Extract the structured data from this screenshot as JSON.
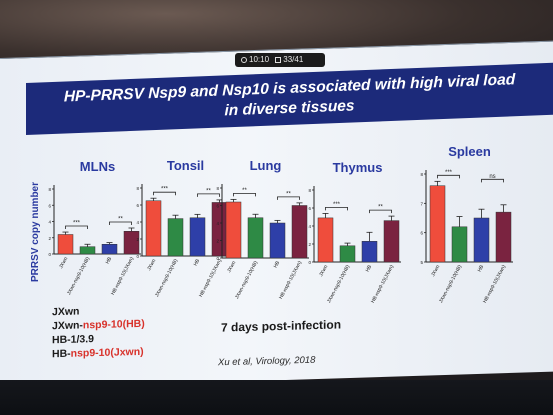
{
  "status_bar": {
    "time": "10:10",
    "page": "33/41"
  },
  "title": {
    "line1": "HP-PRRSV Nsp9 and Nsp10 is associated with high viral load",
    "line2": "in diverse tissues"
  },
  "colors": {
    "bar1": "#ef4d3c",
    "bar2": "#2e8a45",
    "bar3": "#2e3fa8",
    "bar4": "#7a2340",
    "banner": "#1c2a7a",
    "panel_title": "#2a3aa0"
  },
  "chart_data": {
    "type": "bar",
    "ylabel": "PRRSV copy number",
    "categories": [
      "JXwn",
      "JXwn-nsp9-10(HB)",
      "HB",
      "HB-nsp9-10(JXwn)"
    ],
    "panels": [
      {
        "title": "MLNs",
        "yticks": [
          "8",
          "6",
          "4",
          "2",
          "0"
        ],
        "ylim": [
          0,
          8
        ],
        "values": [
          2.4,
          0.9,
          1.2,
          2.8
        ],
        "errors": [
          0.3,
          0.3,
          0.2,
          0.4
        ],
        "sig": [
          {
            "from": 0,
            "to": 1,
            "label": "***"
          },
          {
            "from": 2,
            "to": 3,
            "label": "**"
          }
        ]
      },
      {
        "title": "Tonsil",
        "yticks": [
          "8",
          "6",
          "4",
          "2",
          "0"
        ],
        "ylim": [
          0,
          8
        ],
        "values": [
          6.5,
          4.4,
          4.5,
          6.3
        ],
        "errors": [
          0.3,
          0.4,
          0.4,
          0.3
        ],
        "sig": [
          {
            "from": 0,
            "to": 1,
            "label": "***"
          },
          {
            "from": 2,
            "to": 3,
            "label": "**"
          }
        ]
      },
      {
        "title": "Lung",
        "yticks": [
          "8",
          "6",
          "4",
          "2",
          "0"
        ],
        "ylim": [
          0,
          8
        ],
        "values": [
          6.4,
          4.6,
          4.0,
          6.0
        ],
        "errors": [
          0.3,
          0.4,
          0.3,
          0.3
        ],
        "sig": [
          {
            "from": 0,
            "to": 1,
            "label": "**"
          },
          {
            "from": 2,
            "to": 3,
            "label": "**"
          }
        ]
      },
      {
        "title": "Thymus",
        "yticks": [
          "8",
          "6",
          "4",
          "2",
          "0"
        ],
        "ylim": [
          0,
          8
        ],
        "values": [
          4.9,
          1.8,
          2.3,
          4.6
        ],
        "errors": [
          0.5,
          0.3,
          1.0,
          0.5
        ],
        "sig": [
          {
            "from": 0,
            "to": 1,
            "label": "***"
          },
          {
            "from": 2,
            "to": 3,
            "label": "**"
          }
        ]
      },
      {
        "title": "Spleen",
        "yticks": [
          "8",
          "7",
          "6",
          "5"
        ],
        "ylim": [
          5,
          8
        ],
        "values": [
          7.6,
          6.2,
          6.5,
          6.7
        ],
        "errors": [
          0.15,
          0.35,
          0.3,
          0.25
        ],
        "sig": [
          {
            "from": 0,
            "to": 1,
            "label": "***"
          },
          {
            "from": 2,
            "to": 3,
            "label": "ns"
          }
        ]
      }
    ]
  },
  "legend": [
    {
      "prefix": "JXwn",
      "suffix": ""
    },
    {
      "prefix": "JXwn-",
      "suffix": "nsp9-10(HB)"
    },
    {
      "prefix": "HB-1/3.9",
      "suffix": ""
    },
    {
      "prefix": "HB-",
      "suffix": "nsp9-10(Jxwn)"
    }
  ],
  "annotation": "7 days post-infection",
  "citation": "Xu et al, Virology, 2018"
}
